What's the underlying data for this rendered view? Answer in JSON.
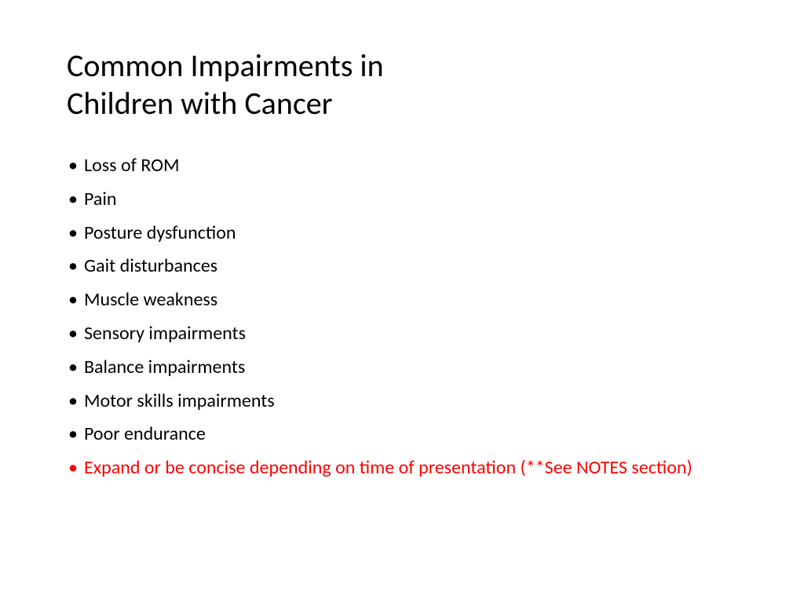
{
  "slide": {
    "title_line1": "Common Impairments in",
    "title_line2": "Children with Cancer",
    "bullets": [
      {
        "text": "Loss of ROM",
        "highlighted": false
      },
      {
        "text": "Pain",
        "highlighted": false
      },
      {
        "text": "Posture dysfunction",
        "highlighted": false
      },
      {
        "text": "Gait disturbances",
        "highlighted": false
      },
      {
        "text": "Muscle weakness",
        "highlighted": false
      },
      {
        "text": "Sensory impairments",
        "highlighted": false
      },
      {
        "text": "Balance impairments",
        "highlighted": false
      },
      {
        "text": "Motor skills impairments",
        "highlighted": false
      },
      {
        "text": "Poor endurance",
        "highlighted": false
      },
      {
        "text": "Expand or be concise depending on time of presentation (**See NOTES section)",
        "highlighted": true
      }
    ]
  },
  "styling": {
    "background_color": "#ffffff",
    "title_color": "#000000",
    "title_fontsize": 40,
    "title_fontweight": 400,
    "body_color": "#000000",
    "body_fontsize": 24,
    "highlight_color": "#ff0000",
    "font_family": "Calibri"
  }
}
